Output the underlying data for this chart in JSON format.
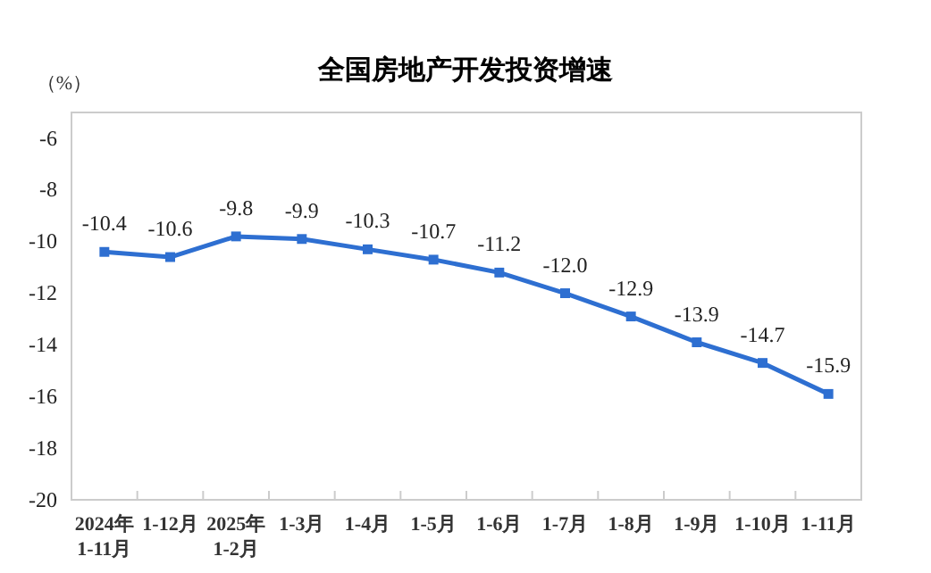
{
  "chart_data": {
    "type": "line",
    "title": "全国房地产开发投资增速",
    "ylabel": "（%）",
    "categories": [
      "2024年\n1-11月",
      "1-12月",
      "2025年\n1-2月",
      "1-3月",
      "1-4月",
      "1-5月",
      "1-6月",
      "1-7月",
      "1-8月",
      "1-9月",
      "1-10月",
      "1-11月"
    ],
    "series": [
      {
        "color": "#2e6fd1",
        "values": [
          -10.4,
          -10.6,
          -9.8,
          -9.9,
          -10.3,
          -10.7,
          -11.2,
          -12.0,
          -12.9,
          -13.9,
          -14.7,
          -15.9
        ],
        "value_labels": [
          "-10.4",
          "-10.6",
          "-9.8",
          "-9.9",
          "-10.3",
          "-10.7",
          "-11.2",
          "-12.0",
          "-12.9",
          "-13.9",
          "-14.7",
          "-15.9"
        ]
      }
    ],
    "ylim": [
      -20,
      -5
    ],
    "yticks": [
      -20,
      -18,
      -16,
      -14,
      -12,
      -10,
      -8,
      -6
    ],
    "grid": false,
    "marker": "square",
    "line_style": "solid"
  }
}
